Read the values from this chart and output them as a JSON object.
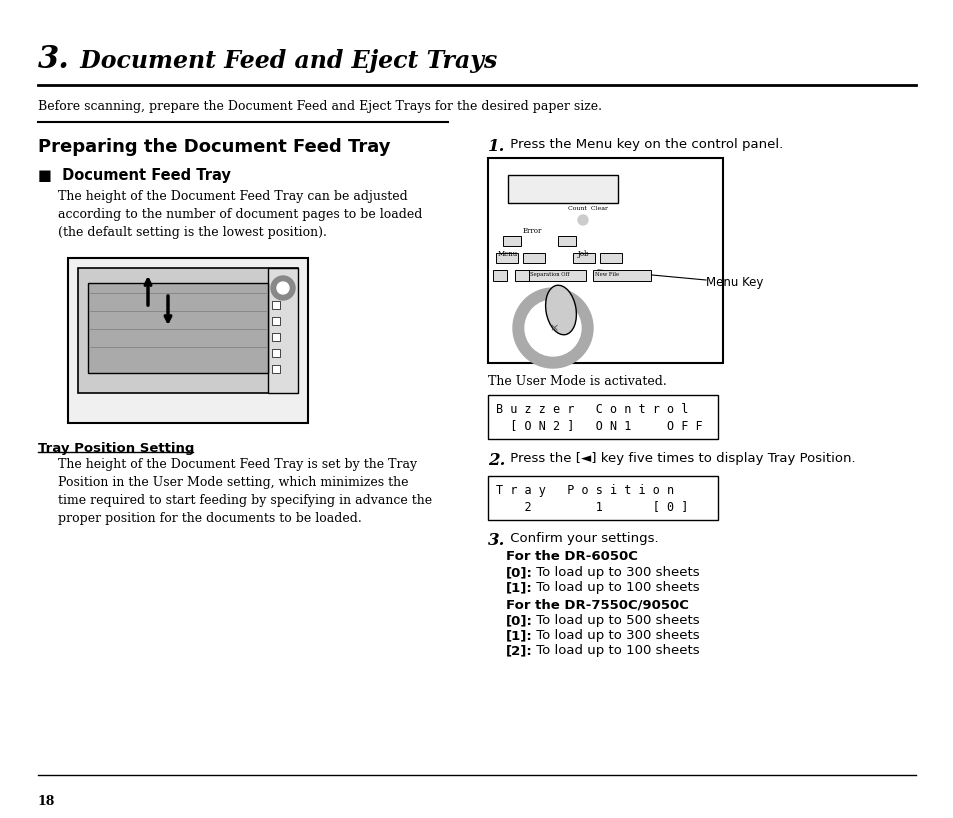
{
  "bg_color": "#ffffff",
  "page_number": "18",
  "chapter_number": "3.",
  "chapter_title": " Document Feed and Eject Trays",
  "intro_text": "Before scanning, prepare the Document Feed and Eject Trays for the desired paper size.",
  "left_section_title": "Preparing the Document Feed Tray",
  "doc_feed_tray_label": "■  Document Feed Tray",
  "doc_feed_tray_text": "The height of the Document Feed Tray can be adjusted\naccording to the number of document pages to be loaded\n(the default setting is the lowest position).",
  "tray_position_label": "Tray Position Setting",
  "tray_position_text": "The height of the Document Feed Tray is set by the Tray\nPosition in the User Mode setting, which minimizes the\ntime required to start feeding by specifying in advance the\nproper position for the documents to be loaded.",
  "step1_bold": "1.",
  "step1_text": " Press the Menu key on the control panel.",
  "user_mode_text": "The User Mode is activated.",
  "buzzer_line1": "B u z z e r   C o n t r o l",
  "buzzer_line2": "  [ O N 2 ]   O N 1     O F F",
  "step2_bold": "2.",
  "step2_text": " Press the [◄] key five times to display Tray Position.",
  "tray_pos_line1": "T r a y   P o s i t i o n",
  "tray_pos_line2": "    2         1       [ 0 ]",
  "step3_bold": "3.",
  "step3_text": " Confirm your settings.",
  "dr6050c_bold": "For the DR-6050C",
  "dr6050c_0": "[0]:",
  "dr6050c_0_text": " To load up to 300 sheets",
  "dr6050c_1": "[1]:",
  "dr6050c_1_text": " To load up to 100 sheets",
  "dr7550c_bold": "For the DR-7550C/9050C",
  "dr7550c_0": "[0]:",
  "dr7550c_0_text": " To load up to 500 sheets",
  "dr7550c_1": "[1]:",
  "dr7550c_1_text": " To load up to 300 sheets",
  "dr7550c_2": "[2]:",
  "dr7550c_2_text": " To load up to 100 sheets",
  "menu_key_label": "Menu Key"
}
